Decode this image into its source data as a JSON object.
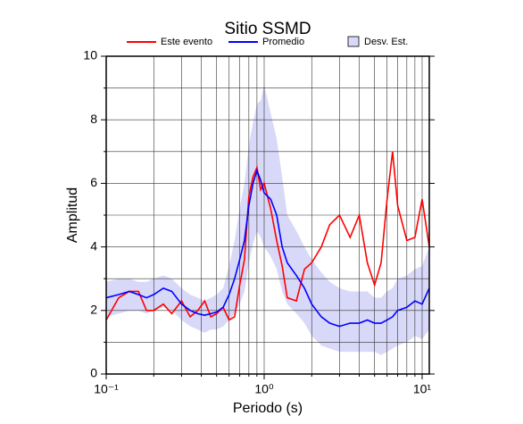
{
  "chart_data": {
    "type": "line",
    "title": "Sitio SSMD",
    "x_label": "Periodo (s)",
    "y_label": "Amplitud",
    "log_x": true,
    "grid": true,
    "xlim": [
      0.1,
      11.1
    ],
    "ylim": [
      0,
      10
    ],
    "xticks": [
      {
        "value": 0.1,
        "label": "10⁻¹"
      },
      {
        "value": 1,
        "label": "10⁰"
      },
      {
        "value": 10,
        "label": "10¹"
      }
    ],
    "xminor": [
      0.2,
      0.3,
      0.4,
      0.5,
      0.6,
      0.7,
      0.8,
      0.9,
      2,
      3,
      4,
      5,
      6,
      7,
      8,
      9
    ],
    "yticks": [
      0,
      2,
      4,
      6,
      8,
      10
    ],
    "yminor": [
      1,
      3,
      5,
      7,
      9
    ],
    "x": [
      0.1,
      0.12,
      0.14,
      0.16,
      0.18,
      0.2,
      0.23,
      0.26,
      0.3,
      0.34,
      0.38,
      0.42,
      0.46,
      0.5,
      0.55,
      0.6,
      0.65,
      0.7,
      0.75,
      0.8,
      0.85,
      0.9,
      0.95,
      1.0,
      1.1,
      1.2,
      1.3,
      1.4,
      1.6,
      1.8,
      2.0,
      2.3,
      2.6,
      3.0,
      3.5,
      4.0,
      4.5,
      5.0,
      5.5,
      6.0,
      6.5,
      7.0,
      8.0,
      9.0,
      10.0,
      11.1
    ],
    "series": [
      {
        "name": "Este evento",
        "color": "#ff0000",
        "values": [
          1.7,
          2.4,
          2.6,
          2.6,
          2.0,
          2.0,
          2.2,
          1.9,
          2.3,
          1.8,
          2.0,
          2.3,
          1.8,
          1.9,
          2.1,
          1.7,
          1.8,
          2.8,
          3.6,
          5.6,
          6.2,
          6.5,
          5.8,
          6.0,
          5.2,
          4.2,
          3.4,
          2.4,
          2.3,
          3.3,
          3.5,
          4.0,
          4.7,
          5.0,
          4.3,
          5.0,
          3.5,
          2.8,
          3.5,
          5.5,
          7.0,
          5.3,
          4.2,
          4.3,
          5.5,
          4.0
        ]
      },
      {
        "name": "Promedio",
        "color": "#0000ff",
        "values": [
          2.4,
          2.5,
          2.6,
          2.5,
          2.4,
          2.5,
          2.7,
          2.6,
          2.2,
          2.0,
          1.9,
          1.85,
          1.9,
          1.95,
          2.1,
          2.5,
          3.0,
          3.6,
          4.2,
          5.3,
          6.0,
          6.4,
          6.1,
          5.7,
          5.5,
          5.0,
          4.0,
          3.5,
          3.1,
          2.7,
          2.2,
          1.8,
          1.6,
          1.5,
          1.6,
          1.6,
          1.7,
          1.6,
          1.6,
          1.7,
          1.8,
          2.0,
          2.1,
          2.3,
          2.2,
          2.7
        ]
      },
      {
        "name": "Desv. Est.",
        "color": "#d8d8f8",
        "upper": [
          2.9,
          3.0,
          3.0,
          2.9,
          2.9,
          3.0,
          3.1,
          3.0,
          2.7,
          2.5,
          2.4,
          2.3,
          2.4,
          2.5,
          2.7,
          3.4,
          4.2,
          5.2,
          6.0,
          7.2,
          7.9,
          8.5,
          8.6,
          9.1,
          8.2,
          7.4,
          6.2,
          5.0,
          4.5,
          4.0,
          3.6,
          3.2,
          2.9,
          2.7,
          2.6,
          2.6,
          2.6,
          2.4,
          2.4,
          2.6,
          2.7,
          3.0,
          3.1,
          3.3,
          3.4,
          4.0
        ],
        "lower": [
          1.8,
          1.9,
          2.0,
          2.0,
          1.9,
          2.0,
          2.1,
          2.0,
          1.7,
          1.5,
          1.4,
          1.3,
          1.4,
          1.4,
          1.5,
          1.7,
          1.9,
          2.2,
          2.6,
          3.5,
          4.1,
          4.5,
          4.3,
          4.0,
          3.7,
          3.3,
          2.6,
          2.2,
          1.9,
          1.6,
          1.2,
          0.9,
          0.8,
          0.7,
          0.7,
          0.7,
          0.7,
          0.7,
          0.6,
          0.7,
          0.8,
          0.9,
          1.0,
          1.2,
          1.1,
          1.4
        ]
      }
    ]
  }
}
